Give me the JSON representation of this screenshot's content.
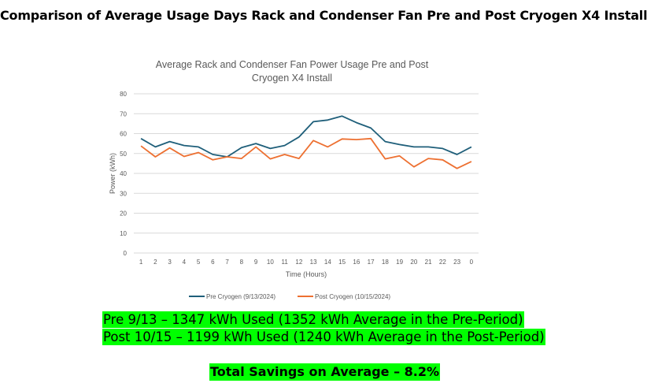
{
  "page": {
    "title": "Comparison of Average Usage Days Rack and Condenser Fan Pre and Post Cryogen X4 Install"
  },
  "summary": {
    "line1": "Pre 9/13 – 1347 kWh Used (1352 kWh Average in the Pre-Period)",
    "line2": "Post 10/15 – 1199 kWh Used (1240 kWh Average in the Post-Period)",
    "savings": "Total Savings on Average – 8.2%",
    "highlight_color": "#00ff00"
  },
  "chart_data": {
    "type": "line",
    "title_lines": [
      "Average Rack and Condenser Fan Power Usage Pre and Post",
      "Cryogen X4 Install"
    ],
    "xlabel": "Time (Hours)",
    "ylabel": "Power (kWh)",
    "ylim": [
      0,
      80
    ],
    "yticks": [
      0,
      10,
      20,
      30,
      40,
      50,
      60,
      70,
      80
    ],
    "grid": "horizontal",
    "legend_position": "bottom",
    "categories": [
      "1",
      "2",
      "3",
      "4",
      "5",
      "6",
      "7",
      "8",
      "9",
      "10",
      "11",
      "12",
      "13",
      "14",
      "15",
      "16",
      "17",
      "18",
      "19",
      "20",
      "21",
      "22",
      "23",
      "0"
    ],
    "series": [
      {
        "name": "Pre Cryogen (9/13/2024)",
        "color": "#1f5f7a",
        "values": [
          57.5,
          53.3,
          56.0,
          54.0,
          53.3,
          49.5,
          48.3,
          53.0,
          55.0,
          52.5,
          54.0,
          58.3,
          66.0,
          66.8,
          68.8,
          65.5,
          62.8,
          56.0,
          54.5,
          53.3,
          53.3,
          52.5,
          49.5,
          53.3
        ]
      },
      {
        "name": "Post Cryogen (10/15/2024)",
        "color": "#ed7031",
        "values": [
          53.8,
          48.3,
          52.8,
          48.5,
          50.5,
          46.8,
          48.3,
          47.5,
          53.3,
          47.3,
          49.5,
          47.5,
          56.5,
          53.3,
          57.3,
          57.0,
          57.5,
          47.3,
          48.8,
          43.3,
          47.5,
          46.8,
          42.5,
          46.0
        ]
      }
    ]
  }
}
